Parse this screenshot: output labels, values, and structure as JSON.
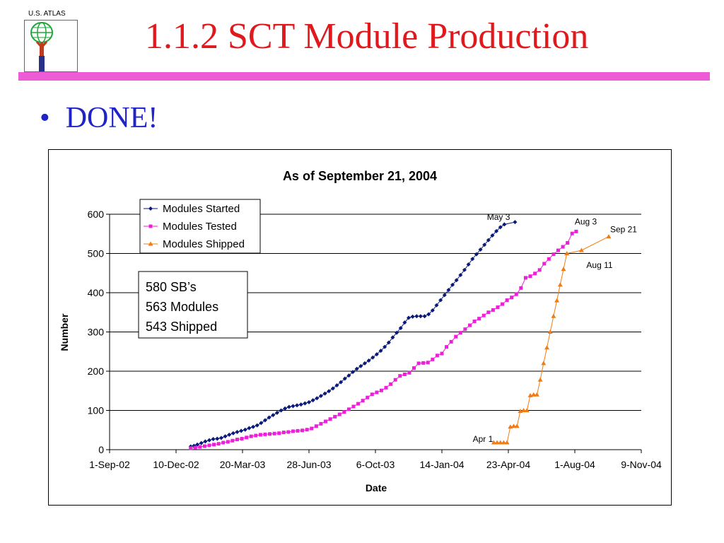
{
  "header": {
    "logo_label": "U.S. ATLAS",
    "title": "1.1.2 SCT Module Production",
    "accent_color": "#ee5bd7",
    "title_color": "#e0191d"
  },
  "bullets": [
    {
      "text": "DONE!",
      "color": "#1f24c8"
    }
  ],
  "chart_data": {
    "type": "line",
    "title": "As of September 21, 2004",
    "xlabel": "Date",
    "ylabel": "Number",
    "ylim": [
      0,
      600
    ],
    "y_ticks": [
      0,
      100,
      200,
      300,
      400,
      500,
      600
    ],
    "xlim": [
      "2002-09-01",
      "2004-11-09"
    ],
    "x_tick_labels": [
      "1-Sep-02",
      "10-Dec-02",
      "20-Mar-03",
      "28-Jun-03",
      "6-Oct-03",
      "14-Jan-04",
      "23-Apr-04",
      "1-Aug-04",
      "9-Nov-04"
    ],
    "grid": "horizontal",
    "legend_position": "top-left",
    "series": [
      {
        "name": "Modules Started",
        "color": "#0a1a7a",
        "marker": "diamond",
        "points": [
          [
            "2003-01-01",
            8
          ],
          [
            "2003-01-06",
            10
          ],
          [
            "2003-01-11",
            13
          ],
          [
            "2003-01-17",
            17
          ],
          [
            "2003-01-23",
            21
          ],
          [
            "2003-01-29",
            24
          ],
          [
            "2003-02-04",
            27
          ],
          [
            "2003-02-10",
            28
          ],
          [
            "2003-02-16",
            30
          ],
          [
            "2003-02-22",
            34
          ],
          [
            "2003-02-28",
            38
          ],
          [
            "2003-03-06",
            42
          ],
          [
            "2003-03-12",
            45
          ],
          [
            "2003-03-18",
            48
          ],
          [
            "2003-03-24",
            51
          ],
          [
            "2003-03-30",
            55
          ],
          [
            "2003-04-05",
            58
          ],
          [
            "2003-04-11",
            62
          ],
          [
            "2003-04-17",
            68
          ],
          [
            "2003-04-23",
            75
          ],
          [
            "2003-04-29",
            82
          ],
          [
            "2003-05-05",
            88
          ],
          [
            "2003-05-11",
            94
          ],
          [
            "2003-05-17",
            100
          ],
          [
            "2003-05-23",
            105
          ],
          [
            "2003-05-29",
            109
          ],
          [
            "2003-06-04",
            111
          ],
          [
            "2003-06-10",
            113
          ],
          [
            "2003-06-16",
            115
          ],
          [
            "2003-06-22",
            118
          ],
          [
            "2003-06-28",
            121
          ],
          [
            "2003-07-04",
            126
          ],
          [
            "2003-07-10",
            131
          ],
          [
            "2003-07-16",
            137
          ],
          [
            "2003-07-22",
            143
          ],
          [
            "2003-07-28",
            149
          ],
          [
            "2003-08-03",
            156
          ],
          [
            "2003-08-09",
            164
          ],
          [
            "2003-08-15",
            172
          ],
          [
            "2003-08-21",
            181
          ],
          [
            "2003-08-27",
            189
          ],
          [
            "2003-09-02",
            198
          ],
          [
            "2003-09-08",
            206
          ],
          [
            "2003-09-14",
            213
          ],
          [
            "2003-09-20",
            220
          ],
          [
            "2003-09-26",
            227
          ],
          [
            "2003-10-02",
            235
          ],
          [
            "2003-10-08",
            243
          ],
          [
            "2003-10-14",
            252
          ],
          [
            "2003-10-20",
            262
          ],
          [
            "2003-10-26",
            273
          ],
          [
            "2003-11-01",
            286
          ],
          [
            "2003-11-07",
            298
          ],
          [
            "2003-11-13",
            310
          ],
          [
            "2003-11-19",
            324
          ],
          [
            "2003-11-25",
            336
          ],
          [
            "2003-12-01",
            339
          ],
          [
            "2003-12-07",
            340
          ],
          [
            "2003-12-13",
            340
          ],
          [
            "2003-12-19",
            340
          ],
          [
            "2003-12-25",
            345
          ],
          [
            "2003-12-31",
            355
          ],
          [
            "2004-01-06",
            368
          ],
          [
            "2004-01-12",
            381
          ],
          [
            "2004-01-18",
            394
          ],
          [
            "2004-01-24",
            407
          ],
          [
            "2004-01-30",
            420
          ],
          [
            "2004-02-05",
            432
          ],
          [
            "2004-02-11",
            445
          ],
          [
            "2004-02-17",
            458
          ],
          [
            "2004-02-23",
            472
          ],
          [
            "2004-02-29",
            486
          ],
          [
            "2004-03-06",
            498
          ],
          [
            "2004-03-12",
            510
          ],
          [
            "2004-03-18",
            522
          ],
          [
            "2004-03-24",
            534
          ],
          [
            "2004-03-30",
            546
          ],
          [
            "2004-04-05",
            557
          ],
          [
            "2004-04-11",
            567
          ],
          [
            "2004-04-17",
            574
          ],
          [
            "2004-05-03",
            580
          ]
        ]
      },
      {
        "name": "Modules Tested",
        "color": "#ee1fd9",
        "marker": "square",
        "points": [
          [
            "2003-01-01",
            4
          ],
          [
            "2003-01-08",
            5
          ],
          [
            "2003-01-15",
            7
          ],
          [
            "2003-01-22",
            9
          ],
          [
            "2003-01-29",
            11
          ],
          [
            "2003-02-05",
            13
          ],
          [
            "2003-02-12",
            15
          ],
          [
            "2003-02-19",
            18
          ],
          [
            "2003-02-26",
            20
          ],
          [
            "2003-03-05",
            23
          ],
          [
            "2003-03-12",
            26
          ],
          [
            "2003-03-19",
            28
          ],
          [
            "2003-03-26",
            31
          ],
          [
            "2003-04-02",
            34
          ],
          [
            "2003-04-09",
            36
          ],
          [
            "2003-04-16",
            38
          ],
          [
            "2003-04-23",
            39
          ],
          [
            "2003-04-30",
            40
          ],
          [
            "2003-05-07",
            41
          ],
          [
            "2003-05-14",
            42
          ],
          [
            "2003-05-21",
            44
          ],
          [
            "2003-05-28",
            45
          ],
          [
            "2003-06-04",
            47
          ],
          [
            "2003-06-11",
            48
          ],
          [
            "2003-06-18",
            49
          ],
          [
            "2003-06-25",
            51
          ],
          [
            "2003-07-02",
            54
          ],
          [
            "2003-07-09",
            60
          ],
          [
            "2003-07-16",
            66
          ],
          [
            "2003-07-23",
            72
          ],
          [
            "2003-07-30",
            78
          ],
          [
            "2003-08-06",
            84
          ],
          [
            "2003-08-13",
            90
          ],
          [
            "2003-08-20",
            96
          ],
          [
            "2003-08-27",
            103
          ],
          [
            "2003-09-03",
            110
          ],
          [
            "2003-09-10",
            117
          ],
          [
            "2003-09-17",
            125
          ],
          [
            "2003-09-24",
            133
          ],
          [
            "2003-10-01",
            141
          ],
          [
            "2003-10-08",
            146
          ],
          [
            "2003-10-15",
            151
          ],
          [
            "2003-10-22",
            158
          ],
          [
            "2003-10-29",
            167
          ],
          [
            "2003-11-05",
            178
          ],
          [
            "2003-11-12",
            188
          ],
          [
            "2003-11-19",
            192
          ],
          [
            "2003-11-26",
            196
          ],
          [
            "2003-12-03",
            208
          ],
          [
            "2003-12-10",
            220
          ],
          [
            "2003-12-17",
            221
          ],
          [
            "2003-12-24",
            222
          ],
          [
            "2003-12-31",
            230
          ],
          [
            "2004-01-07",
            240
          ],
          [
            "2004-01-14",
            245
          ],
          [
            "2004-01-21",
            262
          ],
          [
            "2004-01-28",
            275
          ],
          [
            "2004-02-04",
            288
          ],
          [
            "2004-02-11",
            298
          ],
          [
            "2004-02-18",
            307
          ],
          [
            "2004-02-25",
            317
          ],
          [
            "2004-03-03",
            327
          ],
          [
            "2004-03-10",
            334
          ],
          [
            "2004-03-17",
            342
          ],
          [
            "2004-03-24",
            350
          ],
          [
            "2004-03-31",
            356
          ],
          [
            "2004-04-07",
            363
          ],
          [
            "2004-04-14",
            371
          ],
          [
            "2004-04-21",
            381
          ],
          [
            "2004-04-28",
            388
          ],
          [
            "2004-05-05",
            396
          ],
          [
            "2004-05-12",
            412
          ],
          [
            "2004-05-19",
            438
          ],
          [
            "2004-05-26",
            442
          ],
          [
            "2004-06-02",
            449
          ],
          [
            "2004-06-09",
            458
          ],
          [
            "2004-06-16",
            474
          ],
          [
            "2004-06-23",
            486
          ],
          [
            "2004-06-30",
            498
          ],
          [
            "2004-07-07",
            508
          ],
          [
            "2004-07-14",
            517
          ],
          [
            "2004-07-21",
            527
          ],
          [
            "2004-07-28",
            551
          ],
          [
            "2004-08-03",
            556
          ]
        ]
      },
      {
        "name": "Modules Shipped",
        "color": "#f27c12",
        "marker": "triangle",
        "points": [
          [
            "2004-04-01",
            18
          ],
          [
            "2004-04-06",
            18
          ],
          [
            "2004-04-11",
            18
          ],
          [
            "2004-04-16",
            18
          ],
          [
            "2004-04-21",
            18
          ],
          [
            "2004-04-26",
            58
          ],
          [
            "2004-05-01",
            60
          ],
          [
            "2004-05-06",
            60
          ],
          [
            "2004-05-11",
            98
          ],
          [
            "2004-05-16",
            100
          ],
          [
            "2004-05-21",
            100
          ],
          [
            "2004-05-26",
            138
          ],
          [
            "2004-05-31",
            140
          ],
          [
            "2004-06-05",
            140
          ],
          [
            "2004-06-10",
            178
          ],
          [
            "2004-06-15",
            220
          ],
          [
            "2004-06-20",
            260
          ],
          [
            "2004-06-25",
            300
          ],
          [
            "2004-06-30",
            340
          ],
          [
            "2004-07-05",
            380
          ],
          [
            "2004-07-10",
            420
          ],
          [
            "2004-07-15",
            460
          ],
          [
            "2004-07-20",
            500
          ],
          [
            "2004-08-11",
            508
          ],
          [
            "2004-09-21",
            543
          ]
        ]
      }
    ],
    "annotations": [
      {
        "text": "May 3",
        "x": "2004-05-03",
        "y": 580,
        "anchor": "left-above"
      },
      {
        "text": "Aug 3",
        "x": "2004-08-03",
        "y": 556,
        "anchor": "right-above"
      },
      {
        "text": "Sep 21",
        "x": "2004-09-21",
        "y": 543,
        "anchor": "right"
      },
      {
        "text": "Aug 11",
        "x": "2004-08-11",
        "y": 508,
        "anchor": "below-right"
      },
      {
        "text": "Apr 1",
        "x": "2004-04-01",
        "y": 18,
        "anchor": "left"
      }
    ],
    "summary_box": [
      "580 SB’s",
      "563 Modules",
      "543 Shipped"
    ]
  }
}
